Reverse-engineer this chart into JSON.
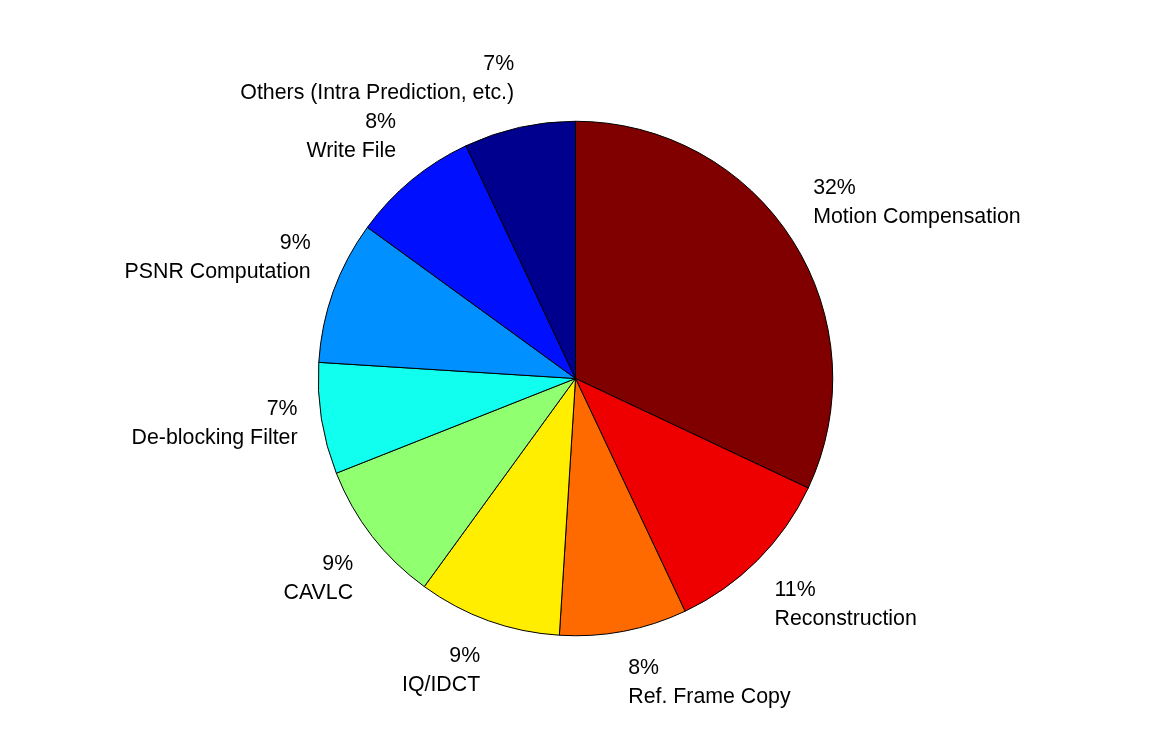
{
  "chart_data": {
    "type": "pie",
    "categories": [
      "Motion Compensation",
      "Reconstruction",
      "Ref. Frame Copy",
      "IQ/IDCT",
      "CAVLC",
      "De-blocking Filter",
      "PSNR Computation",
      "Write File",
      "Others (Intra Prediction, etc.)"
    ],
    "values": [
      32,
      11,
      8,
      9,
      9,
      7,
      9,
      8,
      7
    ],
    "colors": [
      "#800000",
      "#ee0000",
      "#ff6a00",
      "#ffee00",
      "#90ff70",
      "#10ffee",
      "#0090ff",
      "#0010ff",
      "#00008f"
    ],
    "value_labels": [
      "32%",
      "11%",
      "8%",
      "9%",
      "9%",
      "7%",
      "9%",
      "8%",
      "7%"
    ]
  }
}
